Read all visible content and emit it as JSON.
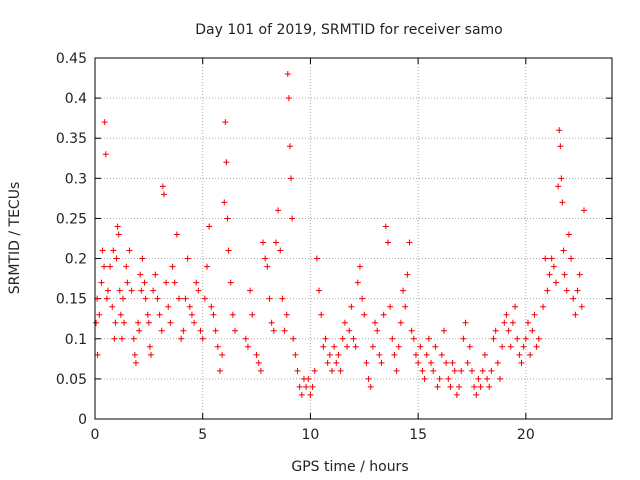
{
  "chart_data": {
    "type": "scatter",
    "title": "Day 101 of 2019, SRMTID for receiver samo",
    "xlabel": "GPS time / hours",
    "ylabel": "SRMTID / TECUs",
    "xlim": [
      0,
      24
    ],
    "ylim": [
      0,
      0.45
    ],
    "x_ticks": [
      0,
      5,
      10,
      15,
      20
    ],
    "y_ticks": [
      0,
      0.05,
      0.1,
      0.15,
      0.2,
      0.25,
      0.3,
      0.35,
      0.4,
      0.45
    ],
    "y_tick_labels": [
      "0",
      "0.05",
      "0.1",
      "0.15",
      "0.2",
      "0.25",
      "0.3",
      "0.35",
      "0.4",
      "0.45"
    ],
    "grid": true,
    "marker": "+",
    "color": "#ee0000",
    "series": [
      {
        "name": "SRMTID",
        "points": [
          [
            0.05,
            0.12
          ],
          [
            0.1,
            0.15
          ],
          [
            0.12,
            0.08
          ],
          [
            0.2,
            0.13
          ],
          [
            0.3,
            0.17
          ],
          [
            0.35,
            0.21
          ],
          [
            0.42,
            0.19
          ],
          [
            0.45,
            0.37
          ],
          [
            0.5,
            0.33
          ],
          [
            0.55,
            0.15
          ],
          [
            0.6,
            0.16
          ],
          [
            0.7,
            0.19
          ],
          [
            0.8,
            0.14
          ],
          [
            0.85,
            0.21
          ],
          [
            0.9,
            0.1
          ],
          [
            0.95,
            0.12
          ],
          [
            1.0,
            0.2
          ],
          [
            1.05,
            0.24
          ],
          [
            1.1,
            0.23
          ],
          [
            1.15,
            0.16
          ],
          [
            1.2,
            0.13
          ],
          [
            1.25,
            0.1
          ],
          [
            1.3,
            0.15
          ],
          [
            1.35,
            0.12
          ],
          [
            1.45,
            0.19
          ],
          [
            1.5,
            0.17
          ],
          [
            1.6,
            0.21
          ],
          [
            1.7,
            0.16
          ],
          [
            1.8,
            0.1
          ],
          [
            1.85,
            0.08
          ],
          [
            1.9,
            0.07
          ],
          [
            2.0,
            0.12
          ],
          [
            2.05,
            0.11
          ],
          [
            2.1,
            0.18
          ],
          [
            2.15,
            0.16
          ],
          [
            2.2,
            0.2
          ],
          [
            2.3,
            0.17
          ],
          [
            2.35,
            0.15
          ],
          [
            2.45,
            0.13
          ],
          [
            2.5,
            0.12
          ],
          [
            2.55,
            0.09
          ],
          [
            2.6,
            0.08
          ],
          [
            2.7,
            0.16
          ],
          [
            2.8,
            0.18
          ],
          [
            2.9,
            0.15
          ],
          [
            3.0,
            0.13
          ],
          [
            3.1,
            0.11
          ],
          [
            3.15,
            0.29
          ],
          [
            3.2,
            0.28
          ],
          [
            3.3,
            0.17
          ],
          [
            3.4,
            0.14
          ],
          [
            3.5,
            0.12
          ],
          [
            3.6,
            0.19
          ],
          [
            3.7,
            0.17
          ],
          [
            3.8,
            0.23
          ],
          [
            3.9,
            0.15
          ],
          [
            4.0,
            0.1
          ],
          [
            4.1,
            0.11
          ],
          [
            4.2,
            0.15
          ],
          [
            4.3,
            0.2
          ],
          [
            4.4,
            0.14
          ],
          [
            4.5,
            0.13
          ],
          [
            4.6,
            0.12
          ],
          [
            4.7,
            0.17
          ],
          [
            4.8,
            0.16
          ],
          [
            4.9,
            0.11
          ],
          [
            5.0,
            0.1
          ],
          [
            5.1,
            0.15
          ],
          [
            5.2,
            0.19
          ],
          [
            5.3,
            0.24
          ],
          [
            5.4,
            0.14
          ],
          [
            5.5,
            0.13
          ],
          [
            5.6,
            0.11
          ],
          [
            5.7,
            0.09
          ],
          [
            5.8,
            0.06
          ],
          [
            5.9,
            0.08
          ],
          [
            6.0,
            0.27
          ],
          [
            6.05,
            0.37
          ],
          [
            6.1,
            0.32
          ],
          [
            6.15,
            0.25
          ],
          [
            6.2,
            0.21
          ],
          [
            6.3,
            0.17
          ],
          [
            6.4,
            0.13
          ],
          [
            6.5,
            0.11
          ],
          [
            7.0,
            0.1
          ],
          [
            7.1,
            0.09
          ],
          [
            7.2,
            0.16
          ],
          [
            7.3,
            0.13
          ],
          [
            7.5,
            0.08
          ],
          [
            7.6,
            0.07
          ],
          [
            7.7,
            0.06
          ],
          [
            7.8,
            0.22
          ],
          [
            7.9,
            0.2
          ],
          [
            8.0,
            0.19
          ],
          [
            8.1,
            0.15
          ],
          [
            8.2,
            0.12
          ],
          [
            8.3,
            0.11
          ],
          [
            8.4,
            0.22
          ],
          [
            8.5,
            0.26
          ],
          [
            8.6,
            0.21
          ],
          [
            8.7,
            0.15
          ],
          [
            8.8,
            0.11
          ],
          [
            8.9,
            0.13
          ],
          [
            8.95,
            0.43
          ],
          [
            9.0,
            0.4
          ],
          [
            9.05,
            0.34
          ],
          [
            9.1,
            0.3
          ],
          [
            9.15,
            0.25
          ],
          [
            9.2,
            0.1
          ],
          [
            9.3,
            0.08
          ],
          [
            9.4,
            0.06
          ],
          [
            9.5,
            0.04
          ],
          [
            9.6,
            0.03
          ],
          [
            9.7,
            0.05
          ],
          [
            9.8,
            0.04
          ],
          [
            9.9,
            0.05
          ],
          [
            10.0,
            0.03
          ],
          [
            10.1,
            0.04
          ],
          [
            10.2,
            0.06
          ],
          [
            10.3,
            0.2
          ],
          [
            10.4,
            0.16
          ],
          [
            10.5,
            0.13
          ],
          [
            10.6,
            0.09
          ],
          [
            10.7,
            0.1
          ],
          [
            10.8,
            0.07
          ],
          [
            10.9,
            0.08
          ],
          [
            11.0,
            0.06
          ],
          [
            11.1,
            0.09
          ],
          [
            11.2,
            0.07
          ],
          [
            11.3,
            0.08
          ],
          [
            11.4,
            0.06
          ],
          [
            11.5,
            0.1
          ],
          [
            11.6,
            0.12
          ],
          [
            11.7,
            0.09
          ],
          [
            11.8,
            0.11
          ],
          [
            11.9,
            0.14
          ],
          [
            12.0,
            0.1
          ],
          [
            12.1,
            0.09
          ],
          [
            12.2,
            0.17
          ],
          [
            12.3,
            0.19
          ],
          [
            12.4,
            0.15
          ],
          [
            12.5,
            0.13
          ],
          [
            12.6,
            0.07
          ],
          [
            12.7,
            0.05
          ],
          [
            12.8,
            0.04
          ],
          [
            12.9,
            0.09
          ],
          [
            13.0,
            0.12
          ],
          [
            13.1,
            0.11
          ],
          [
            13.2,
            0.08
          ],
          [
            13.3,
            0.07
          ],
          [
            13.4,
            0.13
          ],
          [
            13.5,
            0.24
          ],
          [
            13.6,
            0.22
          ],
          [
            13.7,
            0.14
          ],
          [
            13.8,
            0.1
          ],
          [
            13.9,
            0.08
          ],
          [
            14.0,
            0.06
          ],
          [
            14.1,
            0.09
          ],
          [
            14.2,
            0.12
          ],
          [
            14.3,
            0.16
          ],
          [
            14.4,
            0.14
          ],
          [
            14.5,
            0.18
          ],
          [
            14.6,
            0.22
          ],
          [
            14.7,
            0.11
          ],
          [
            14.8,
            0.1
          ],
          [
            14.9,
            0.08
          ],
          [
            15.0,
            0.07
          ],
          [
            15.1,
            0.09
          ],
          [
            15.2,
            0.06
          ],
          [
            15.3,
            0.05
          ],
          [
            15.4,
            0.08
          ],
          [
            15.5,
            0.1
          ],
          [
            15.6,
            0.07
          ],
          [
            15.7,
            0.06
          ],
          [
            15.8,
            0.09
          ],
          [
            15.9,
            0.04
          ],
          [
            16.0,
            0.05
          ],
          [
            16.1,
            0.08
          ],
          [
            16.2,
            0.11
          ],
          [
            16.3,
            0.07
          ],
          [
            16.4,
            0.05
          ],
          [
            16.5,
            0.04
          ],
          [
            16.6,
            0.07
          ],
          [
            16.7,
            0.06
          ],
          [
            16.8,
            0.03
          ],
          [
            16.9,
            0.04
          ],
          [
            17.0,
            0.06
          ],
          [
            17.1,
            0.1
          ],
          [
            17.2,
            0.12
          ],
          [
            17.3,
            0.07
          ],
          [
            17.4,
            0.09
          ],
          [
            17.5,
            0.06
          ],
          [
            17.6,
            0.04
          ],
          [
            17.7,
            0.03
          ],
          [
            17.8,
            0.05
          ],
          [
            17.9,
            0.04
          ],
          [
            18.0,
            0.06
          ],
          [
            18.1,
            0.08
          ],
          [
            18.2,
            0.05
          ],
          [
            18.3,
            0.04
          ],
          [
            18.4,
            0.06
          ],
          [
            18.5,
            0.1
          ],
          [
            18.6,
            0.11
          ],
          [
            18.7,
            0.07
          ],
          [
            18.8,
            0.05
          ],
          [
            18.9,
            0.09
          ],
          [
            19.0,
            0.12
          ],
          [
            19.1,
            0.13
          ],
          [
            19.2,
            0.11
          ],
          [
            19.3,
            0.09
          ],
          [
            19.4,
            0.12
          ],
          [
            19.5,
            0.14
          ],
          [
            19.6,
            0.1
          ],
          [
            19.7,
            0.08
          ],
          [
            19.8,
            0.07
          ],
          [
            19.9,
            0.09
          ],
          [
            20.0,
            0.1
          ],
          [
            20.1,
            0.12
          ],
          [
            20.2,
            0.08
          ],
          [
            20.3,
            0.11
          ],
          [
            20.4,
            0.13
          ],
          [
            20.5,
            0.09
          ],
          [
            20.6,
            0.1
          ],
          [
            20.8,
            0.14
          ],
          [
            20.9,
            0.2
          ],
          [
            21.0,
            0.16
          ],
          [
            21.1,
            0.18
          ],
          [
            21.2,
            0.2
          ],
          [
            21.3,
            0.19
          ],
          [
            21.4,
            0.17
          ],
          [
            21.5,
            0.29
          ],
          [
            21.55,
            0.36
          ],
          [
            21.6,
            0.34
          ],
          [
            21.65,
            0.3
          ],
          [
            21.7,
            0.27
          ],
          [
            21.75,
            0.21
          ],
          [
            21.8,
            0.18
          ],
          [
            21.9,
            0.16
          ],
          [
            22.0,
            0.23
          ],
          [
            22.1,
            0.2
          ],
          [
            22.2,
            0.15
          ],
          [
            22.3,
            0.13
          ],
          [
            22.4,
            0.16
          ],
          [
            22.5,
            0.18
          ],
          [
            22.6,
            0.14
          ],
          [
            22.7,
            0.26
          ]
        ]
      }
    ]
  }
}
